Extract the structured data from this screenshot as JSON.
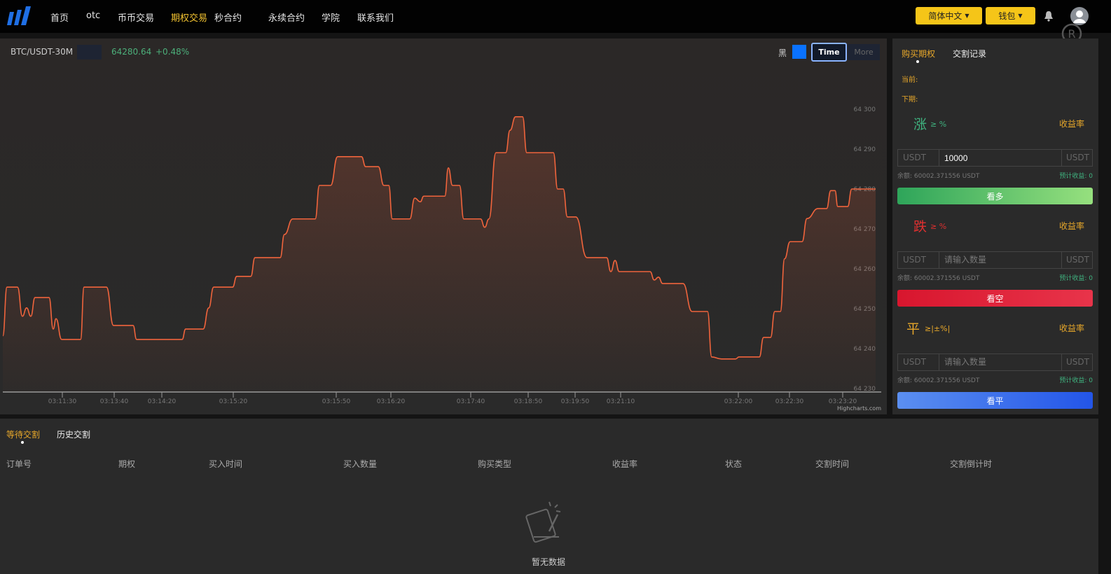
{
  "header": {
    "nav": [
      "首页",
      "otc",
      "币币交易",
      "期权交易",
      "秒合约",
      "永续合约",
      "学院",
      "联系我们"
    ],
    "active_nav": "期权交易",
    "language_label": "简体中文",
    "wallet_label": "钱包"
  },
  "chart_header": {
    "symbol": "BTC/USDT-30M",
    "price": "64280.64",
    "change": "+0.48%",
    "theme_label": "黑",
    "theme_color": "#0a72ff",
    "time_button": "Time",
    "more_button": "More",
    "credit": "Highcharts.com"
  },
  "chart_data": {
    "type": "area",
    "ylim": [
      64230,
      64300
    ],
    "y_ticks": [
      "64 300",
      "64 290",
      "64 280",
      "64 270",
      "64 260",
      "64 250",
      "64 240",
      "64 230"
    ],
    "x_ticks": [
      "03:11:30",
      "03:13:40",
      "03:14:20",
      "03:15:20",
      "03:15:50",
      "03:16:20",
      "03:17:40",
      "03:18:50",
      "03:19:50",
      "03:21:10",
      "03:22:00",
      "03:22:30",
      "03:23:20"
    ],
    "line_color": "#f0643c",
    "values": [
      64243.2,
      64255.4,
      64255.4,
      64248.1,
      64250.2,
      64248.1,
      64252.8,
      64252.8,
      64244.9,
      64247.5,
      64242.3,
      64242.3,
      64255.4,
      64255.4,
      64245.8,
      64245.8,
      64242.3,
      64242.3,
      64244.9,
      64244.9,
      64250.2,
      64255.4,
      64255.4,
      64258.1,
      64258.1,
      64262.8,
      64262.8,
      64268.6,
      64272.5,
      64272.5,
      64280.9,
      64280.9,
      64288.1,
      64288.1,
      64285.6,
      64285.6,
      64280.9,
      64280.9,
      64272.5,
      64272.5,
      64277.7,
      64276.8,
      64278.2,
      64278.2,
      64285.3,
      64280.9,
      64280.9,
      64272.5,
      64272.5,
      64270.4,
      64272.5,
      64289.1,
      64289.1,
      64294.7,
      64298.1,
      64298.1,
      64289.1,
      64289.1,
      64280.0,
      64280.0,
      64273.0,
      64273.0,
      64262.8,
      64262.8,
      64259.3,
      64262.1,
      64259.3,
      64259.3,
      64257.2,
      64257.9,
      64256.3,
      64256.3,
      64249.3,
      64249.3,
      64237.9,
      64237.4,
      64237.4,
      64237.9,
      64237.9,
      64242.8,
      64242.8,
      64249.3,
      64249.3,
      64262.5,
      64266.8,
      64266.8,
      64272.6,
      64275.1,
      64275.1,
      64279.6,
      64279.6,
      64275.6,
      64275.6,
      64280.0,
      64280.0
    ]
  },
  "right_panel": {
    "tabs": [
      "购买期权",
      "交割记录"
    ],
    "current_label": "当前:",
    "next_label": "下期:",
    "sections": [
      {
        "dir": "涨",
        "cond": "≥ %",
        "rate_label": "收益率",
        "unit_left": "USDT",
        "value": "10000",
        "placeholder": "请输入数量",
        "unit_right": "USDT",
        "balance": "余额: 60002.371556 USDT",
        "estimate": "预计收益: 0",
        "button": "看多",
        "color": "#3fb27f"
      },
      {
        "dir": "跌",
        "cond": "≥ %",
        "rate_label": "收益率",
        "unit_left": "USDT",
        "value": "",
        "placeholder": "请输入数量",
        "unit_right": "USDT",
        "balance": "余额: 60002.371556 USDT",
        "estimate": "预计收益: 0",
        "button": "看空",
        "color": "#e03030"
      },
      {
        "dir": "平",
        "cond": "≥|±%|",
        "rate_label": "收益率",
        "unit_left": "USDT",
        "value": "",
        "placeholder": "请输入数量",
        "unit_right": "USDT",
        "balance": "余额: 60002.371556 USDT",
        "estimate": "预计收益: 0",
        "button": "看平",
        "color": "#e8a82a"
      }
    ]
  },
  "orders": {
    "tabs": [
      "等待交割",
      "历史交割"
    ],
    "columns": [
      "订单号",
      "期权",
      "买入时间",
      "买入数量",
      "购买类型",
      "收益率",
      "状态",
      "交割时间",
      "交割倒计时"
    ],
    "empty_text": "暂无数据"
  }
}
